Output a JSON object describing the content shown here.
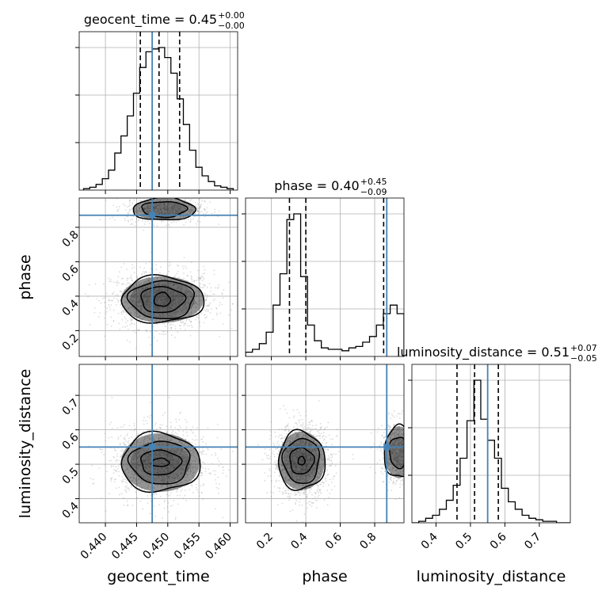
{
  "colors": {
    "truth": "#4682b4",
    "hist": "#000000",
    "grid": "#b0b0b0",
    "density": "#000000"
  },
  "chart_data": {
    "type": "corner",
    "parameters": [
      "geocent_time",
      "phase",
      "luminosity_distance"
    ],
    "grid": true,
    "truths": {
      "geocent_time": 0.4475,
      "phase": 0.87,
      "luminosity_distance": 0.55
    },
    "ranges": {
      "geocent_time": [
        0.4358,
        0.4612
      ],
      "phase": [
        0.05,
        0.97
      ],
      "luminosity_distance": [
        0.33,
        0.79
      ]
    },
    "ticks": {
      "geocent_time": {
        "values": [
          0.44,
          0.445,
          0.45,
          0.455,
          0.46
        ],
        "labels": [
          "0.440",
          "0.445",
          "0.450",
          "0.455",
          "0.460"
        ]
      },
      "phase": {
        "values": [
          0.2,
          0.4,
          0.6,
          0.8
        ],
        "labels": [
          "0.2",
          "0.4",
          "0.6",
          "0.8"
        ]
      },
      "luminosity_distance": {
        "values": [
          0.4,
          0.5,
          0.6,
          0.7
        ],
        "labels": [
          "0.4",
          "0.5",
          "0.6",
          "0.7"
        ]
      }
    },
    "titles": [
      {
        "param": "geocent_time",
        "label": "geocent_time = 0.45",
        "plus": "+0.00",
        "minus": "−0.00"
      },
      {
        "param": "phase",
        "label": "phase = 0.40",
        "plus": "+0.45",
        "minus": "−0.09"
      },
      {
        "param": "luminosity_distance",
        "label": "luminosity_distance = 0.51",
        "plus": "+0.07",
        "minus": "−0.05"
      }
    ],
    "axis_labels": {
      "x": [
        "geocent_time",
        "phase",
        "luminosity_distance"
      ],
      "y": [
        "phase",
        "luminosity_distance"
      ]
    },
    "quantiles": {
      "geocent_time": [
        0.4456,
        0.4486,
        0.4519
      ],
      "phase": [
        0.305,
        0.4,
        0.852
      ],
      "luminosity_distance": [
        0.461,
        0.512,
        0.581
      ]
    },
    "histograms": {
      "geocent_time": {
        "edges": [
          0.4365,
          0.4375,
          0.4385,
          0.4395,
          0.4405,
          0.4415,
          0.4425,
          0.4435,
          0.4445,
          0.4455,
          0.4465,
          0.4475,
          0.4485,
          0.4495,
          0.4505,
          0.4515,
          0.4525,
          0.4535,
          0.4545,
          0.4555,
          0.4565,
          0.4575,
          0.4585,
          0.4595,
          0.4605
        ],
        "counts": [
          0.01,
          0.02,
          0.04,
          0.08,
          0.14,
          0.26,
          0.38,
          0.52,
          0.68,
          0.86,
          0.97,
          0.99,
          1.0,
          0.93,
          0.82,
          0.64,
          0.46,
          0.28,
          0.16,
          0.1,
          0.06,
          0.03,
          0.02,
          0.01
        ]
      },
      "phase": {
        "edges": [
          0.05,
          0.09,
          0.13,
          0.17,
          0.21,
          0.25,
          0.29,
          0.33,
          0.37,
          0.41,
          0.45,
          0.49,
          0.53,
          0.57,
          0.61,
          0.65,
          0.69,
          0.73,
          0.77,
          0.81,
          0.85,
          0.89,
          0.93,
          0.97
        ],
        "counts": [
          0.03,
          0.05,
          0.09,
          0.17,
          0.36,
          0.58,
          0.96,
          1.0,
          0.56,
          0.22,
          0.11,
          0.06,
          0.05,
          0.05,
          0.04,
          0.06,
          0.07,
          0.1,
          0.14,
          0.22,
          0.3,
          0.36,
          0.3
        ]
      },
      "luminosity_distance": {
        "edges": [
          0.33,
          0.35,
          0.37,
          0.39,
          0.41,
          0.43,
          0.45,
          0.47,
          0.49,
          0.51,
          0.53,
          0.55,
          0.57,
          0.59,
          0.61,
          0.63,
          0.65,
          0.67,
          0.69,
          0.71,
          0.73,
          0.75,
          0.77,
          0.79
        ],
        "counts": [
          0.0,
          0.01,
          0.03,
          0.05,
          0.09,
          0.15,
          0.25,
          0.43,
          0.68,
          0.95,
          0.69,
          0.55,
          0.43,
          0.23,
          0.14,
          0.09,
          0.05,
          0.03,
          0.02,
          0.01,
          0.01,
          0.0,
          0.0
        ]
      }
    },
    "contours": [
      {
        "x": "geocent_time",
        "y": "phase",
        "modes": [
          {
            "cx": 0.4491,
            "cy": 0.38,
            "rx": [
              0.0013,
              0.0035,
              0.0052,
              0.0066
            ],
            "ry": [
              0.04,
              0.075,
              0.11,
              0.135
            ],
            "weight": 1.0
          },
          {
            "cx": 0.4494,
            "cy": 0.905,
            "rx": [
              0.0036,
              0.005
            ],
            "ry": [
              0.045,
              0.065
            ],
            "weight": 0.5,
            "clip_top": true
          }
        ]
      },
      {
        "x": "geocent_time",
        "y": "luminosity_distance",
        "modes": [
          {
            "cx": 0.4488,
            "cy": 0.505,
            "rx": [
              0.0014,
              0.0032,
              0.0048,
              0.0063
            ],
            "ry": [
              0.012,
              0.036,
              0.062,
              0.085
            ],
            "weight": 1.0
          }
        ]
      },
      {
        "x": "phase",
        "y": "luminosity_distance",
        "modes": [
          {
            "cx": 0.375,
            "cy": 0.51,
            "rx": [
              0.02,
              0.07,
              0.105,
              0.135
            ],
            "ry": [
              0.012,
              0.038,
              0.065,
              0.085
            ],
            "weight": 1.0
          },
          {
            "cx": 0.94,
            "cy": 0.535,
            "rx": [
              0.055,
              0.085
            ],
            "ry": [
              0.045,
              0.075
            ],
            "weight": 0.5,
            "clip_right": true
          }
        ]
      }
    ]
  }
}
